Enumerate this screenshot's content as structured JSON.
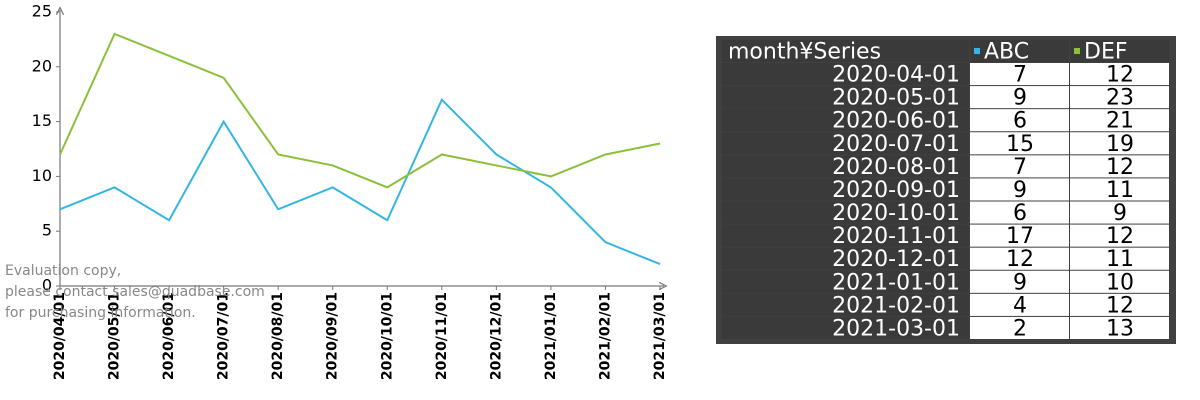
{
  "chart_data": {
    "type": "line",
    "categories": [
      "2020/04/01",
      "2020/05/01",
      "2020/06/01",
      "2020/07/01",
      "2020/08/01",
      "2020/09/01",
      "2020/10/01",
      "2020/11/01",
      "2020/12/01",
      "2021/01/01",
      "2021/02/01",
      "2021/03/01"
    ],
    "series": [
      {
        "name": "ABC",
        "color": "#33b5e5",
        "values": [
          7,
          9,
          6,
          15,
          7,
          9,
          6,
          17,
          12,
          9,
          4,
          2
        ]
      },
      {
        "name": "DEF",
        "color": "#8bc03d",
        "values": [
          12,
          23,
          21,
          19,
          12,
          11,
          9,
          12,
          11,
          10,
          12,
          13
        ]
      }
    ],
    "ylim": [
      0,
      25
    ],
    "yticks": [
      0,
      5,
      10,
      15,
      20,
      25
    ]
  },
  "watermark": [
    "Evaluation copy,",
    "please contact sales@quadbase.com",
    "for purchasing information."
  ],
  "table": {
    "corner": "month¥Series",
    "rows": [
      "2020-04-01",
      "2020-05-01",
      "2020-06-01",
      "2020-07-01",
      "2020-08-01",
      "2020-09-01",
      "2020-10-01",
      "2020-11-01",
      "2020-12-01",
      "2021-01-01",
      "2021-02-01",
      "2021-03-01"
    ]
  }
}
